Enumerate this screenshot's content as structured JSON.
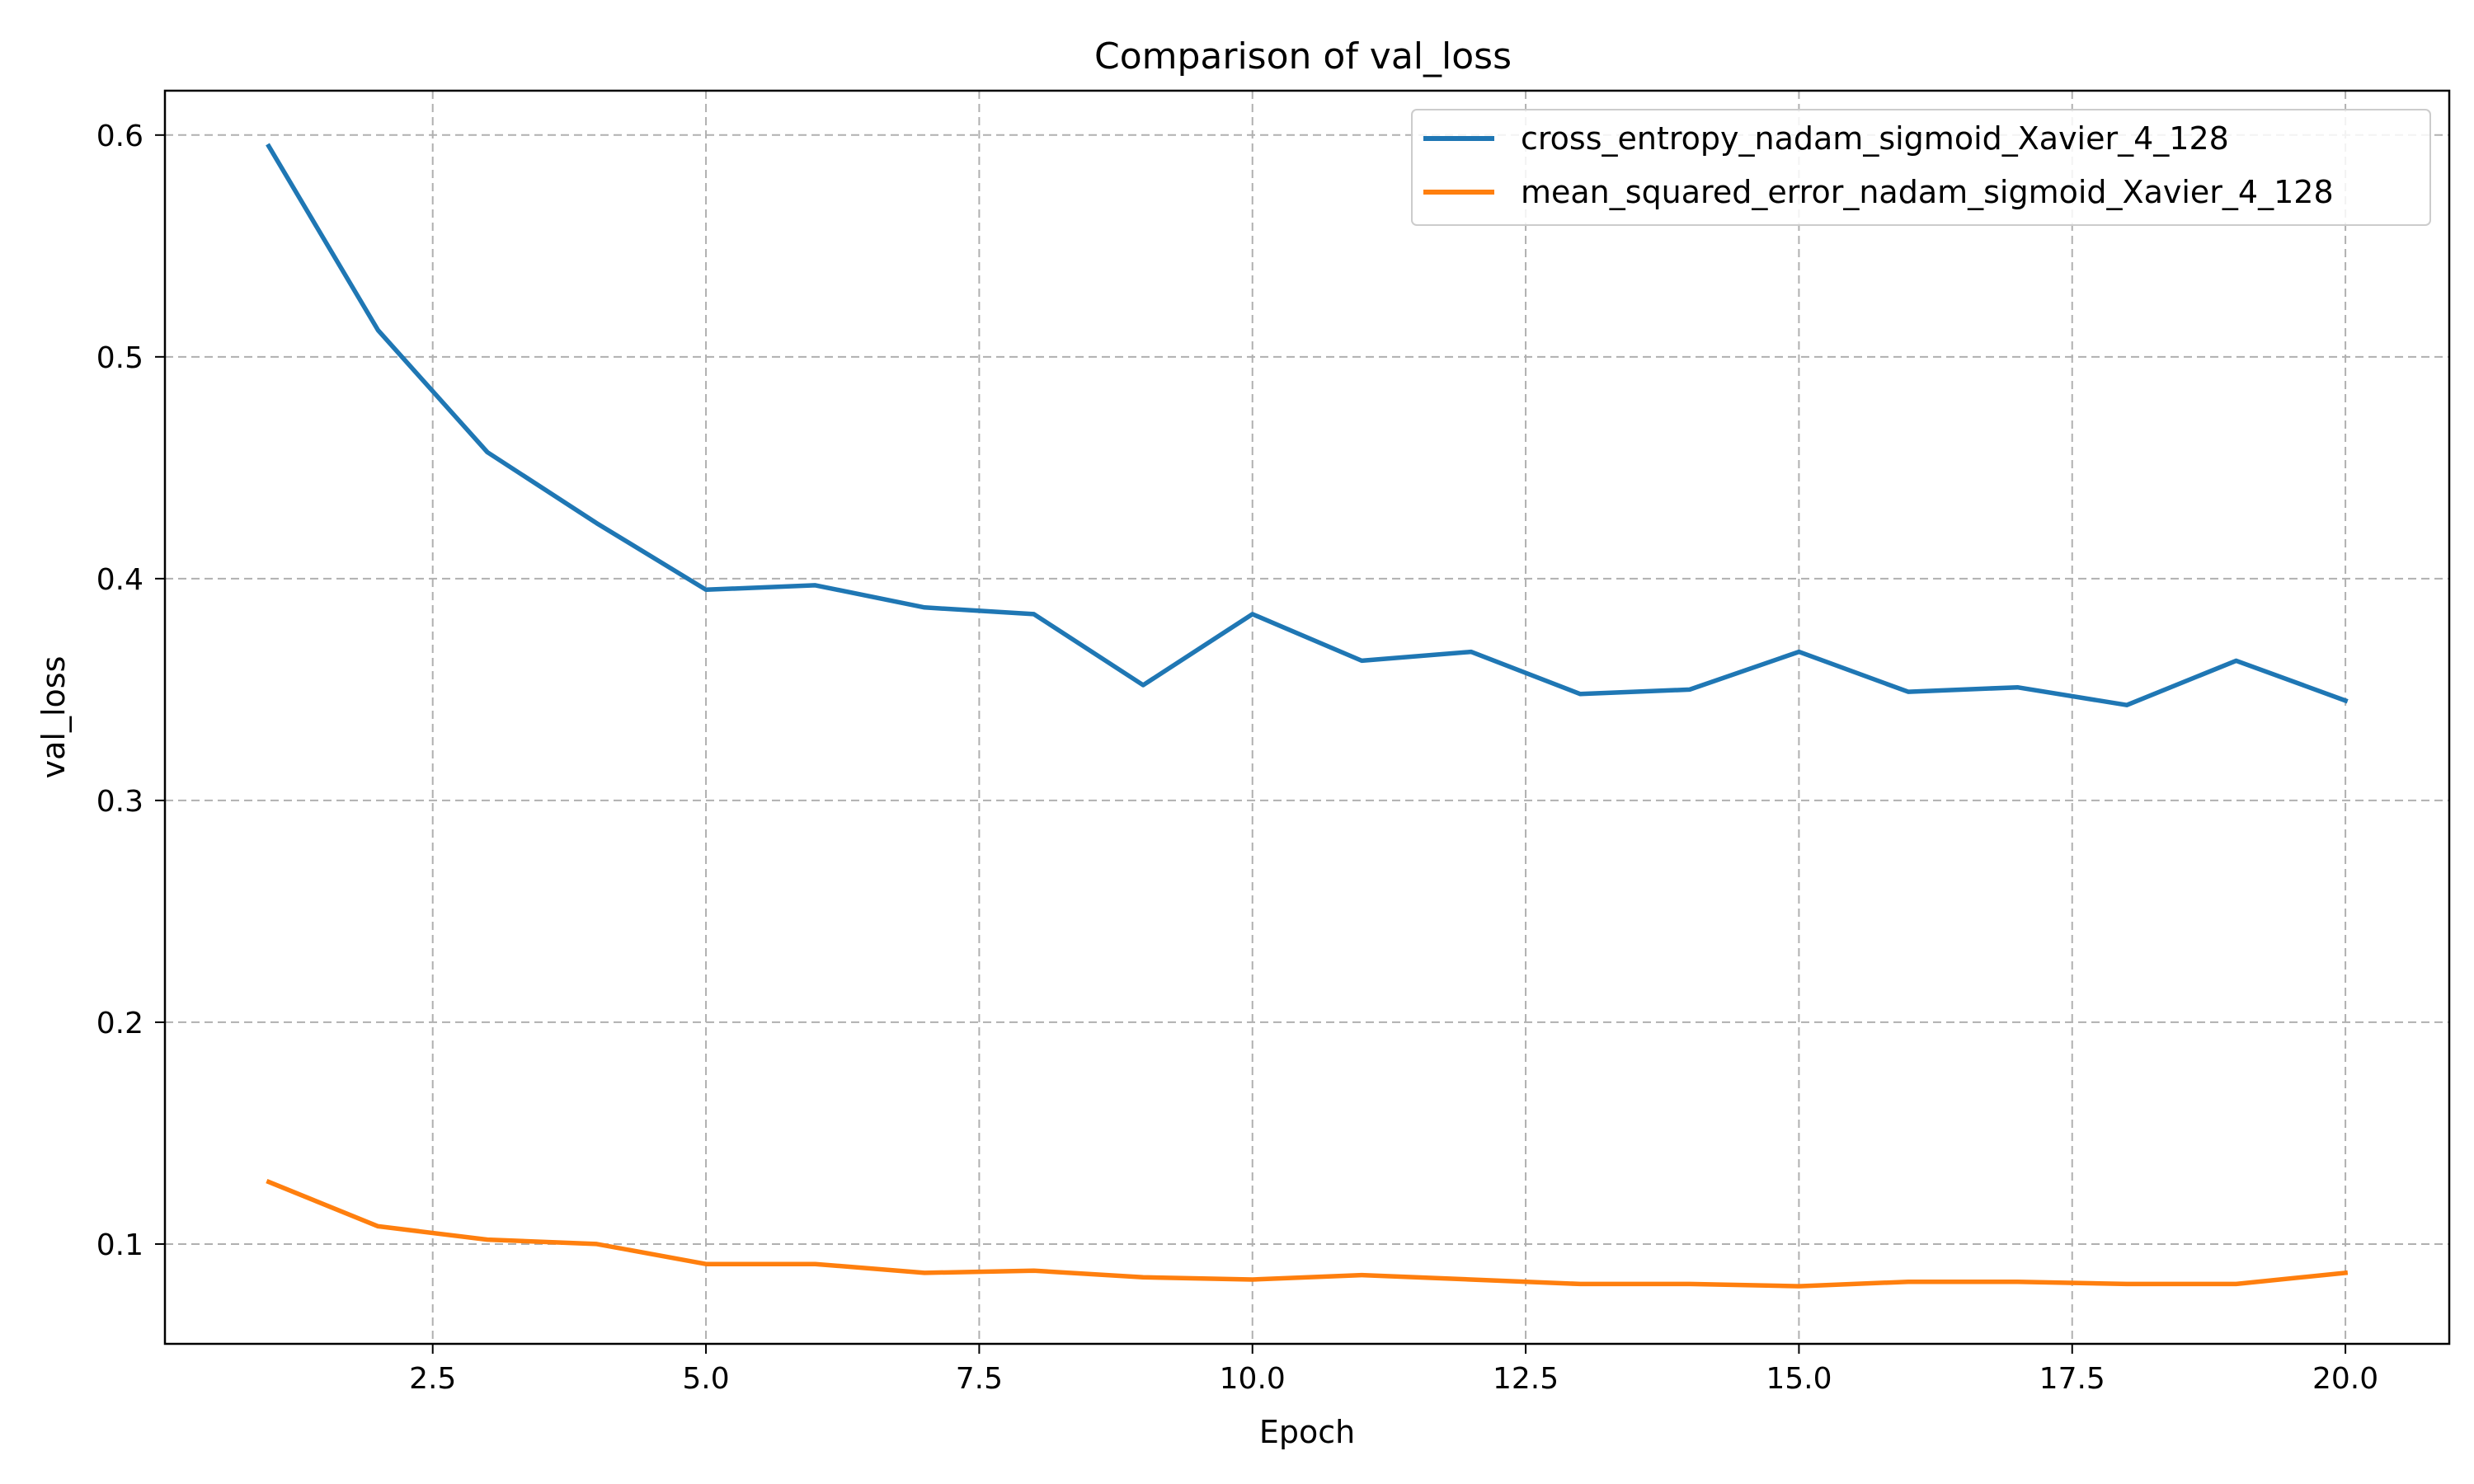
{
  "chart_data": {
    "type": "line",
    "title": "Comparison of val_loss",
    "xlabel": "Epoch",
    "ylabel": "val_loss",
    "xlim": [
      0.05,
      20.95
    ],
    "ylim": [
      0.055,
      0.62
    ],
    "xticks": [
      2.5,
      5.0,
      7.5,
      10.0,
      12.5,
      15.0,
      17.5,
      20.0
    ],
    "xtick_labels": [
      "2.5",
      "5.0",
      "7.5",
      "10.0",
      "12.5",
      "15.0",
      "17.5",
      "20.0"
    ],
    "yticks": [
      0.1,
      0.2,
      0.3,
      0.4,
      0.5,
      0.6
    ],
    "ytick_labels": [
      "0.1",
      "0.2",
      "0.3",
      "0.4",
      "0.5",
      "0.6"
    ],
    "grid": true,
    "legend_position": "top-right",
    "x": [
      1,
      2,
      3,
      4,
      5,
      6,
      7,
      8,
      9,
      10,
      11,
      12,
      13,
      14,
      15,
      16,
      17,
      18,
      19,
      20
    ],
    "series": [
      {
        "name": "cross_entropy_nadam_sigmoid_Xavier_4_128",
        "color": "#1f77b4",
        "values": [
          0.595,
          0.512,
          0.457,
          0.425,
          0.395,
          0.397,
          0.387,
          0.384,
          0.352,
          0.384,
          0.363,
          0.367,
          0.348,
          0.35,
          0.367,
          0.349,
          0.351,
          0.343,
          0.363,
          0.345
        ]
      },
      {
        "name": "mean_squared_error_nadam_sigmoid_Xavier_4_128",
        "color": "#ff7f0e",
        "values": [
          0.128,
          0.108,
          0.102,
          0.1,
          0.091,
          0.091,
          0.087,
          0.088,
          0.085,
          0.084,
          0.086,
          0.084,
          0.082,
          0.082,
          0.081,
          0.083,
          0.083,
          0.082,
          0.082,
          0.087
        ]
      }
    ]
  }
}
